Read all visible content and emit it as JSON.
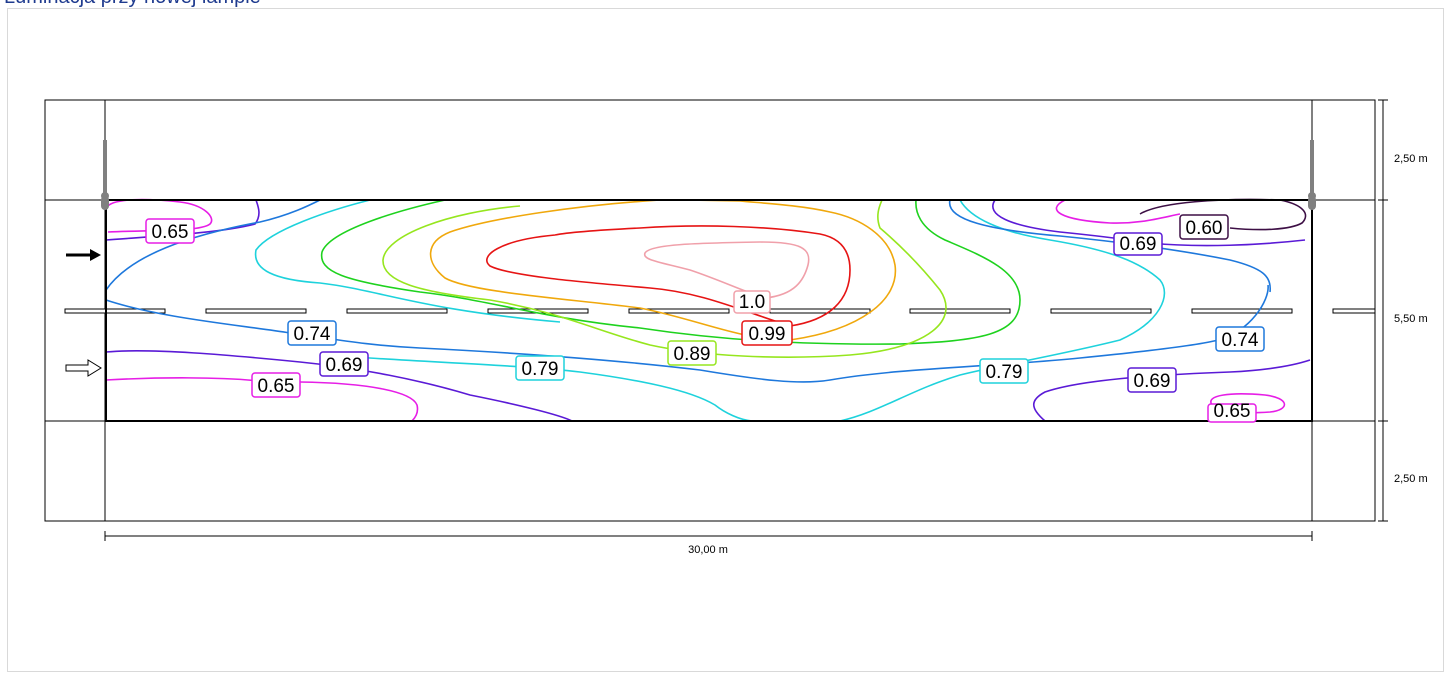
{
  "title": "Luminacja przy nowej lampie",
  "dimensions": {
    "top_sidewalk": "2,50 m",
    "road_width": "5,50 m",
    "bottom_sidewalk": "2,50 m",
    "length": "30,00 m"
  },
  "colors": {
    "c060": "#3d0f45",
    "c065": "#e61ee6",
    "c069": "#5a1ad6",
    "c074": "#1e78dc",
    "c079": "#1ed2dc",
    "c084": "#1ed21e",
    "c089": "#96e61e",
    "c094": "#f0a80c",
    "c099": "#e61414",
    "c100": "#f0a0aa"
  },
  "contour_labels": [
    {
      "text": "0.65",
      "level": "c065"
    },
    {
      "text": "0.60",
      "level": "c060"
    },
    {
      "text": "0.69",
      "level": "c069"
    },
    {
      "text": "0.74",
      "level": "c074"
    },
    {
      "text": "0.69",
      "level": "c069"
    },
    {
      "text": "0.79",
      "level": "c079"
    },
    {
      "text": "0.89",
      "level": "c089"
    },
    {
      "text": "1.0",
      "level": "c100"
    },
    {
      "text": "0.99",
      "level": "c099"
    },
    {
      "text": "0.74",
      "level": "c074"
    },
    {
      "text": "0.65",
      "level": "c065"
    },
    {
      "text": "0.79",
      "level": "c079"
    },
    {
      "text": "0.69",
      "level": "c069"
    },
    {
      "text": "0.65",
      "level": "c065"
    }
  ]
}
